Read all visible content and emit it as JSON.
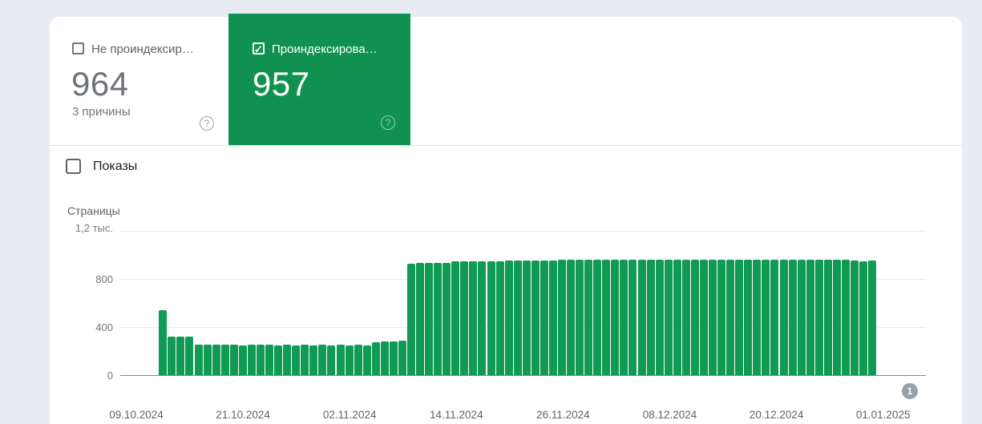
{
  "cards": {
    "not_indexed": {
      "label": "Не проиндексир…",
      "value": "964",
      "sub": "3 причины",
      "checked": false,
      "help_icon": "?"
    },
    "indexed": {
      "label": "Проиндексирова…",
      "value": "957",
      "checked": true,
      "checkmark": "✓",
      "help_icon": "?",
      "accent_color": "#119150"
    }
  },
  "impressions_toggle": {
    "label": "Показы",
    "checked": false
  },
  "pagination_badge": "1",
  "chart_data": {
    "type": "bar",
    "title": "Страницы",
    "ylabel": "Страницы",
    "ylim": [
      0,
      1200
    ],
    "grid": true,
    "y_ticks": [
      "1,2 тыс.",
      "800",
      "400",
      "0"
    ],
    "y_tick_values": [
      1200,
      800,
      400,
      0
    ],
    "x_ticks": [
      "09.10.2024",
      "21.10.2024",
      "02.11.2024",
      "14.11.2024",
      "26.11.2024",
      "08.12.2024",
      "20.12.2024",
      "01.01.2025"
    ],
    "bar_color": "#109a54",
    "values": [
      540,
      320,
      318,
      320,
      255,
      253,
      255,
      252,
      254,
      250,
      252,
      251,
      253,
      250,
      252,
      250,
      251,
      250,
      252,
      249,
      251,
      250,
      252,
      250,
      272,
      278,
      282,
      285,
      930,
      931,
      932,
      933,
      935,
      944,
      945,
      946,
      947,
      948,
      950,
      952,
      953,
      954,
      955,
      956,
      956,
      957,
      957,
      958,
      958,
      958,
      959,
      959,
      959,
      960,
      960,
      960,
      960,
      960,
      960,
      960,
      960,
      960,
      960,
      960,
      960,
      960,
      960,
      960,
      960,
      960,
      960,
      960,
      960,
      960,
      960,
      960,
      960,
      958,
      955,
      950,
      953
    ]
  },
  "colors": {
    "page_background": "#e9ecf2",
    "card_background": "#ffffff",
    "selected_card_green": "#119150",
    "bar_green": "#109a54",
    "text_gray": "#5f6368",
    "grid_gray": "#e8eaed",
    "axis_gray": "#80868b",
    "badge_gray": "#9aa0a6"
  }
}
